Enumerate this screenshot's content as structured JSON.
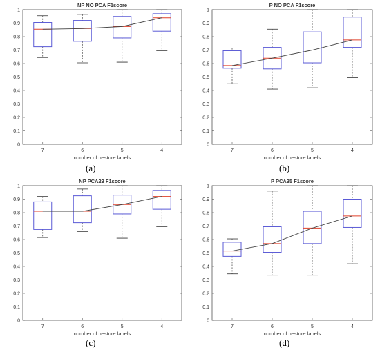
{
  "colors": {
    "box": "#5a5ad6",
    "median": "#e0402a",
    "trend": "#444444",
    "whisker": "#333333",
    "axis": "#555555"
  },
  "chart_data": [
    {
      "type": "box",
      "panel_label": "(a)",
      "title": "NP NO PCA F1score",
      "xlabel": "number of gesture labels",
      "ylabel": "",
      "categories": [
        "7",
        "6",
        "5",
        "4"
      ],
      "yticks": [
        "0",
        "0.1",
        "0.2",
        "0.3",
        "0.4",
        "0.5",
        "0.6",
        "0.7",
        "0.8",
        "0.9",
        "1"
      ],
      "ylim": [
        0,
        1
      ],
      "boxes": [
        {
          "min": 0.645,
          "q1": 0.725,
          "median": 0.855,
          "q3": 0.905,
          "max": 0.955
        },
        {
          "min": 0.605,
          "q1": 0.765,
          "median": 0.86,
          "q3": 0.92,
          "max": 0.965
        },
        {
          "min": 0.61,
          "q1": 0.79,
          "median": 0.875,
          "q3": 0.95,
          "max": 1.0
        },
        {
          "min": 0.695,
          "q1": 0.84,
          "median": 0.94,
          "q3": 0.97,
          "max": 1.0
        }
      ]
    },
    {
      "type": "box",
      "panel_label": "(b)",
      "title": "P NO PCA F1score",
      "xlabel": "number of gesture labels",
      "ylabel": "",
      "categories": [
        "7",
        "6",
        "5",
        "4"
      ],
      "yticks": [
        "0",
        "0.1",
        "0.2",
        "0.3",
        "0.4",
        "0.5",
        "0.6",
        "0.7",
        "0.8",
        "0.9",
        "1"
      ],
      "ylim": [
        0,
        1
      ],
      "boxes": [
        {
          "min": 0.45,
          "q1": 0.565,
          "median": 0.585,
          "q3": 0.695,
          "max": 0.715
        },
        {
          "min": 0.41,
          "q1": 0.56,
          "median": 0.64,
          "q3": 0.72,
          "max": 0.855
        },
        {
          "min": 0.42,
          "q1": 0.605,
          "median": 0.7,
          "q3": 0.835,
          "max": 1.0
        },
        {
          "min": 0.495,
          "q1": 0.72,
          "median": 0.775,
          "q3": 0.945,
          "max": 1.0
        }
      ]
    },
    {
      "type": "box",
      "panel_label": "(c)",
      "title": "NP PCA23 F1score",
      "xlabel": "number of gesture labels",
      "ylabel": "",
      "categories": [
        "7",
        "6",
        "5",
        "4"
      ],
      "yticks": [
        "0",
        "0.1",
        "0.2",
        "0.3",
        "0.4",
        "0.5",
        "0.6",
        "0.7",
        "0.8",
        "0.9",
        "1"
      ],
      "ylim": [
        0,
        1
      ],
      "boxes": [
        {
          "min": 0.615,
          "q1": 0.675,
          "median": 0.81,
          "q3": 0.88,
          "max": 0.92
        },
        {
          "min": 0.66,
          "q1": 0.725,
          "median": 0.81,
          "q3": 0.925,
          "max": 0.975
        },
        {
          "min": 0.61,
          "q1": 0.79,
          "median": 0.86,
          "q3": 0.93,
          "max": 1.0
        },
        {
          "min": 0.695,
          "q1": 0.825,
          "median": 0.92,
          "q3": 0.965,
          "max": 1.0
        }
      ]
    },
    {
      "type": "box",
      "panel_label": "(d)",
      "title": "P PCA35 F1score",
      "xlabel": "number of gesture labels",
      "ylabel": "",
      "categories": [
        "7",
        "6",
        "5",
        "4"
      ],
      "yticks": [
        "0",
        "0.1",
        "0.2",
        "0.3",
        "0.4",
        "0.5",
        "0.6",
        "0.7",
        "0.8",
        "0.9",
        "1"
      ],
      "ylim": [
        0,
        1
      ],
      "boxes": [
        {
          "min": 0.345,
          "q1": 0.475,
          "median": 0.515,
          "q3": 0.58,
          "max": 0.605
        },
        {
          "min": 0.335,
          "q1": 0.505,
          "median": 0.57,
          "q3": 0.695,
          "max": 0.96
        },
        {
          "min": 0.335,
          "q1": 0.57,
          "median": 0.685,
          "q3": 0.81,
          "max": 1.0
        },
        {
          "min": 0.42,
          "q1": 0.69,
          "median": 0.775,
          "q3": 0.9,
          "max": 1.0
        }
      ]
    }
  ]
}
